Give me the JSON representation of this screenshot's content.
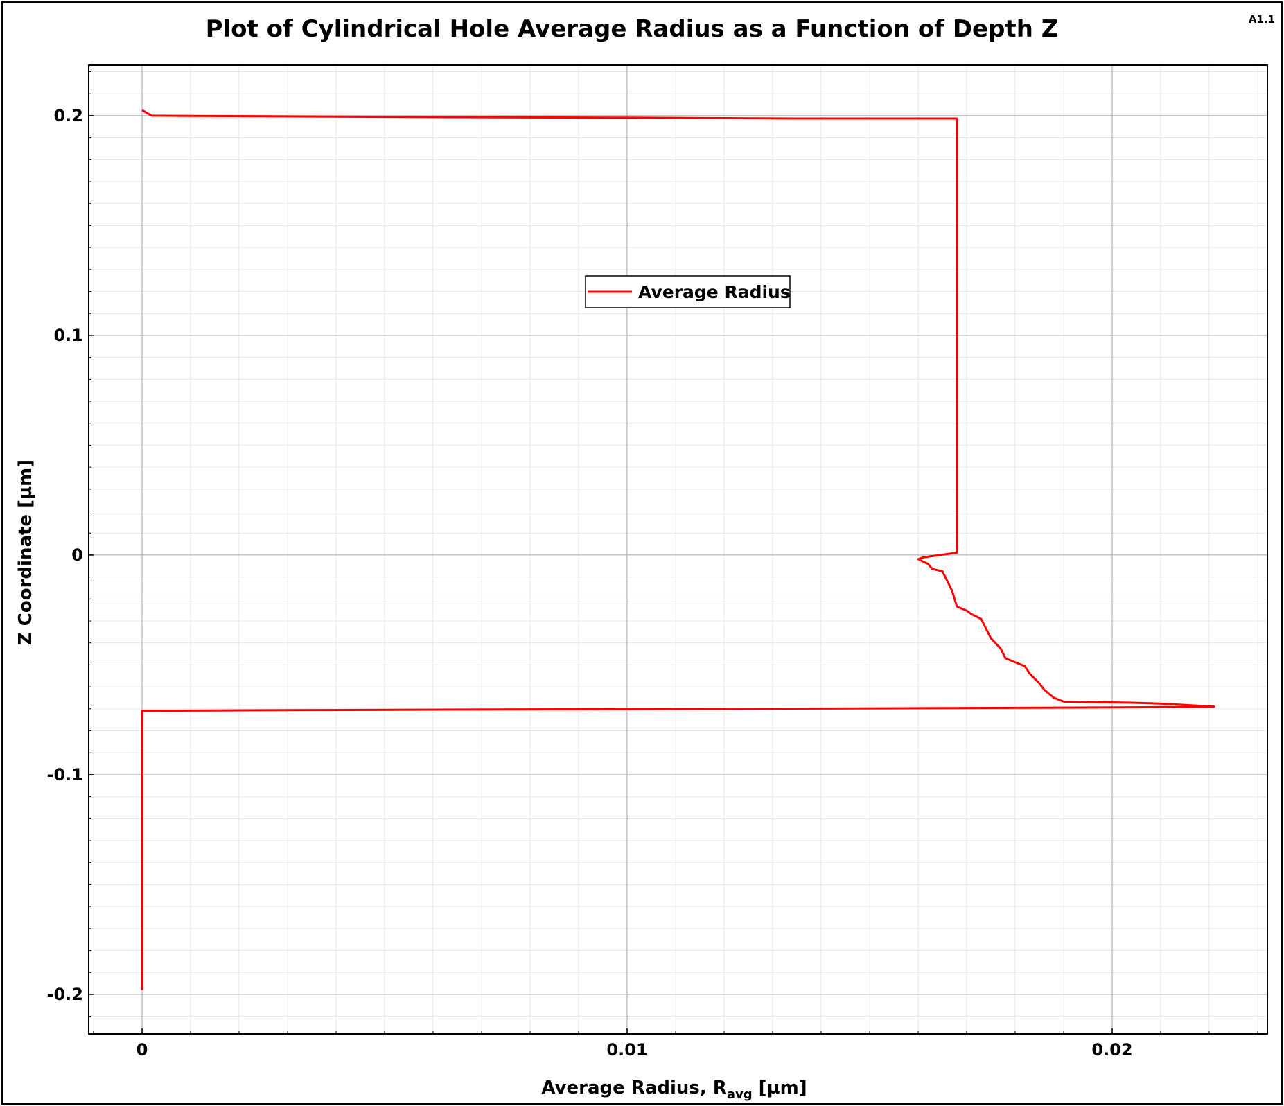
{
  "chart_data": {
    "type": "line",
    "title": "Plot of Cylindrical Hole Average Radius as a Function of Depth Z",
    "corner_tag": "A1.1",
    "xlabel": {
      "main": "Average Radius, R",
      "subscript": "avg",
      "unit": " [µm]"
    },
    "ylabel": "Z Coordinate [µm]",
    "xlim": [
      -0.0011,
      0.0232
    ],
    "ylim": [
      -0.218,
      0.223
    ],
    "x_ticks": [
      {
        "value": 0,
        "label": "0"
      },
      {
        "value": 0.01,
        "label": "0.01"
      },
      {
        "value": 0.02,
        "label": "0.02"
      }
    ],
    "y_ticks": [
      {
        "value": 0.2,
        "label": "0.2"
      },
      {
        "value": 0.1,
        "label": "0.1"
      },
      {
        "value": 0,
        "label": "0"
      },
      {
        "value": -0.1,
        "label": "-0.1"
      },
      {
        "value": -0.2,
        "label": "-0.2"
      }
    ],
    "minor_grid_step_x": 0.001,
    "minor_grid_step_y": 0.01,
    "grid": true,
    "legend_position": "center-top",
    "series": [
      {
        "name": "Average Radius",
        "color": "#ff0000",
        "points": [
          [
            0.0,
            -0.198
          ],
          [
            0.0,
            -0.0709
          ],
          [
            0.003,
            -0.0706
          ],
          [
            0.0074,
            -0.0703
          ],
          [
            0.0118,
            -0.07
          ],
          [
            0.0161,
            -0.0697
          ],
          [
            0.0205,
            -0.0693
          ],
          [
            0.0221,
            -0.069
          ],
          [
            0.021,
            -0.0676
          ],
          [
            0.0204,
            -0.0672
          ],
          [
            0.019,
            -0.0667
          ],
          [
            0.0188,
            -0.065
          ],
          [
            0.0186,
            -0.0613
          ],
          [
            0.0185,
            -0.0584
          ],
          [
            0.0183,
            -0.054
          ],
          [
            0.0182,
            -0.0506
          ],
          [
            0.018,
            -0.0488
          ],
          [
            0.0178,
            -0.047
          ],
          [
            0.0177,
            -0.0425
          ],
          [
            0.0175,
            -0.0379
          ],
          [
            0.0173,
            -0.0291
          ],
          [
            0.0171,
            -0.0269
          ],
          [
            0.017,
            -0.0253
          ],
          [
            0.0168,
            -0.0235
          ],
          [
            0.0167,
            -0.0163
          ],
          [
            0.0166,
            -0.0118
          ],
          [
            0.0165,
            -0.0074
          ],
          [
            0.0163,
            -0.0064
          ],
          [
            0.0162,
            -0.004
          ],
          [
            0.016,
            -0.0019
          ],
          [
            0.0161,
            -0.0011
          ],
          [
            0.0168,
            0.0011
          ],
          [
            0.0168,
            0.1987
          ],
          [
            0.0134,
            0.1987
          ],
          [
            0.0101,
            0.1991
          ],
          [
            0.0068,
            0.1993
          ],
          [
            0.0035,
            0.1996
          ],
          [
            0.0002,
            0.2
          ],
          [
            0.0,
            0.2025
          ]
        ]
      }
    ]
  }
}
